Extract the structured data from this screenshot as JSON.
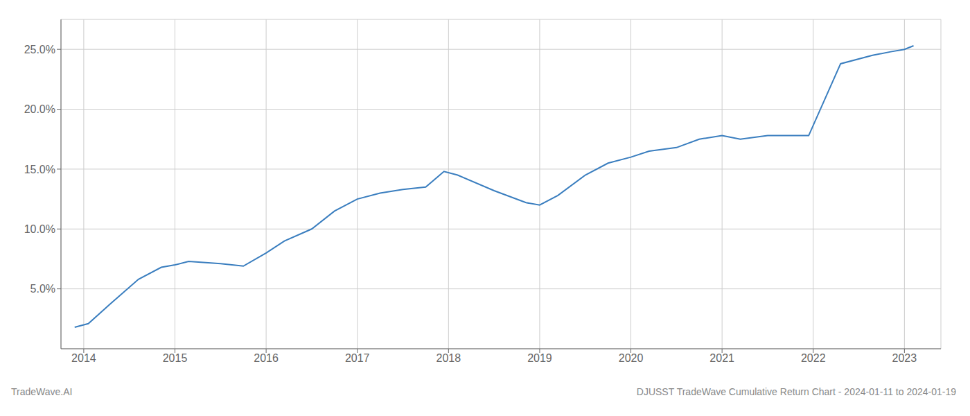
{
  "chart_data": {
    "type": "line",
    "x": [
      2013.9,
      2014.05,
      2014.3,
      2014.6,
      2014.85,
      2015.0,
      2015.15,
      2015.5,
      2015.75,
      2016.0,
      2016.2,
      2016.5,
      2016.75,
      2017.0,
      2017.25,
      2017.5,
      2017.75,
      2017.95,
      2018.1,
      2018.5,
      2018.85,
      2019.0,
      2019.2,
      2019.5,
      2019.75,
      2020.0,
      2020.2,
      2020.5,
      2020.75,
      2021.0,
      2021.2,
      2021.5,
      2021.75,
      2021.95,
      2022.3,
      2022.65,
      2022.85,
      2023.0,
      2023.1
    ],
    "values": [
      1.8,
      2.1,
      3.8,
      5.8,
      6.8,
      7.0,
      7.3,
      7.1,
      6.9,
      8.0,
      9.0,
      10.0,
      11.5,
      12.5,
      13.0,
      13.3,
      13.5,
      14.8,
      14.5,
      13.2,
      12.2,
      12.0,
      12.8,
      14.5,
      15.5,
      16.0,
      16.5,
      16.8,
      17.5,
      17.8,
      17.5,
      17.8,
      17.8,
      17.8,
      23.8,
      24.5,
      24.8,
      25.0,
      25.3
    ],
    "color": "#3a7ebf",
    "xlim": [
      2013.75,
      2023.4
    ],
    "ylim": [
      0.0,
      27.5
    ],
    "xticks": [
      2014,
      2015,
      2016,
      2017,
      2018,
      2019,
      2020,
      2021,
      2022,
      2023
    ],
    "yticks": [
      {
        "value": 5.0,
        "label": "5.0%"
      },
      {
        "value": 10.0,
        "label": "10.0%"
      },
      {
        "value": 15.0,
        "label": "15.0%"
      },
      {
        "value": 20.0,
        "label": "20.0%"
      },
      {
        "value": 25.0,
        "label": "25.0%"
      }
    ],
    "grid": true,
    "annotations": [
      "TradeWave.AI",
      "DJUSST TradeWave Cumulative Return Chart - 2024-01-11 to 2024-01-19"
    ]
  }
}
